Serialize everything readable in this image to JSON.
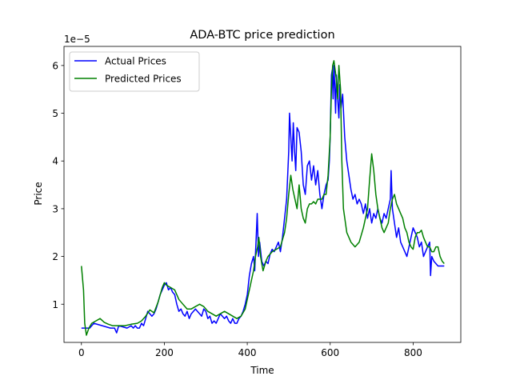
{
  "chart_data": {
    "type": "line",
    "title": "ADA-BTC price prediction",
    "xlabel": "Time",
    "ylabel": "Price",
    "y_scale_label": "1e−5",
    "xlim": [
      -42,
      915
    ],
    "ylim": [
      0.2,
      6.4
    ],
    "xticks": [
      0,
      200,
      400,
      600,
      800
    ],
    "yticks": [
      1,
      2,
      3,
      4,
      5,
      6
    ],
    "legend_position": "top-left",
    "series": [
      {
        "name": "Actual Prices",
        "color": "#0000ff",
        "points": [
          [
            0,
            0.5
          ],
          [
            20,
            0.5
          ],
          [
            30,
            0.6
          ],
          [
            50,
            0.55
          ],
          [
            70,
            0.5
          ],
          [
            80,
            0.5
          ],
          [
            85,
            0.4
          ],
          [
            90,
            0.55
          ],
          [
            110,
            0.5
          ],
          [
            120,
            0.55
          ],
          [
            125,
            0.5
          ],
          [
            130,
            0.55
          ],
          [
            135,
            0.5
          ],
          [
            140,
            0.5
          ],
          [
            145,
            0.6
          ],
          [
            150,
            0.55
          ],
          [
            155,
            0.7
          ],
          [
            160,
            0.85
          ],
          [
            165,
            0.8
          ],
          [
            170,
            0.75
          ],
          [
            175,
            0.8
          ],
          [
            180,
            0.9
          ],
          [
            185,
            1.05
          ],
          [
            190,
            1.2
          ],
          [
            195,
            1.3
          ],
          [
            200,
            1.4
          ],
          [
            205,
            1.45
          ],
          [
            210,
            1.3
          ],
          [
            215,
            1.35
          ],
          [
            220,
            1.25
          ],
          [
            225,
            1.2
          ],
          [
            230,
            1.0
          ],
          [
            235,
            0.85
          ],
          [
            240,
            0.9
          ],
          [
            245,
            0.8
          ],
          [
            250,
            0.75
          ],
          [
            255,
            0.85
          ],
          [
            260,
            0.7
          ],
          [
            265,
            0.8
          ],
          [
            270,
            0.85
          ],
          [
            275,
            0.9
          ],
          [
            280,
            0.85
          ],
          [
            285,
            0.8
          ],
          [
            290,
            0.75
          ],
          [
            295,
            0.9
          ],
          [
            300,
            0.85
          ],
          [
            305,
            0.7
          ],
          [
            310,
            0.75
          ],
          [
            315,
            0.6
          ],
          [
            320,
            0.65
          ],
          [
            325,
            0.6
          ],
          [
            330,
            0.7
          ],
          [
            335,
            0.8
          ],
          [
            340,
            0.75
          ],
          [
            345,
            0.7
          ],
          [
            350,
            0.75
          ],
          [
            355,
            0.65
          ],
          [
            360,
            0.6
          ],
          [
            365,
            0.7
          ],
          [
            370,
            0.6
          ],
          [
            375,
            0.6
          ],
          [
            380,
            0.7
          ],
          [
            385,
            0.75
          ],
          [
            390,
            0.85
          ],
          [
            395,
            1.0
          ],
          [
            400,
            1.2
          ],
          [
            405,
            1.6
          ],
          [
            410,
            1.85
          ],
          [
            415,
            2.0
          ],
          [
            418,
            1.7
          ],
          [
            421,
            2.3
          ],
          [
            424,
            2.9
          ],
          [
            427,
            2.0
          ],
          [
            430,
            2.3
          ],
          [
            435,
            1.9
          ],
          [
            440,
            1.8
          ],
          [
            445,
            1.9
          ],
          [
            450,
            1.85
          ],
          [
            455,
            2.05
          ],
          [
            460,
            2.15
          ],
          [
            465,
            2.1
          ],
          [
            470,
            2.2
          ],
          [
            475,
            2.3
          ],
          [
            480,
            2.1
          ],
          [
            485,
            2.4
          ],
          [
            490,
            2.8
          ],
          [
            495,
            3.2
          ],
          [
            500,
            4.2
          ],
          [
            502,
            5.0
          ],
          [
            505,
            4.5
          ],
          [
            508,
            4.0
          ],
          [
            511,
            4.8
          ],
          [
            514,
            4.2
          ],
          [
            517,
            3.8
          ],
          [
            520,
            4.7
          ],
          [
            525,
            4.6
          ],
          [
            530,
            4.2
          ],
          [
            535,
            3.5
          ],
          [
            540,
            3.3
          ],
          [
            545,
            3.9
          ],
          [
            550,
            4.0
          ],
          [
            555,
            3.6
          ],
          [
            560,
            3.9
          ],
          [
            565,
            3.5
          ],
          [
            570,
            3.8
          ],
          [
            575,
            3.3
          ],
          [
            580,
            3.0
          ],
          [
            585,
            3.3
          ],
          [
            590,
            3.5
          ],
          [
            595,
            3.6
          ],
          [
            598,
            4.0
          ],
          [
            600,
            4.5
          ],
          [
            603,
            5.8
          ],
          [
            605,
            5.9
          ],
          [
            607,
            5.3
          ],
          [
            609,
            6.0
          ],
          [
            611,
            5.6
          ],
          [
            613,
            5.0
          ],
          [
            615,
            5.8
          ],
          [
            618,
            5.3
          ],
          [
            621,
            4.9
          ],
          [
            623,
            5.6
          ],
          [
            626,
            5.1
          ],
          [
            630,
            5.4
          ],
          [
            635,
            4.5
          ],
          [
            640,
            4.0
          ],
          [
            645,
            3.7
          ],
          [
            650,
            3.4
          ],
          [
            655,
            3.2
          ],
          [
            660,
            3.3
          ],
          [
            665,
            3.1
          ],
          [
            670,
            3.2
          ],
          [
            675,
            3.1
          ],
          [
            680,
            2.9
          ],
          [
            685,
            3.1
          ],
          [
            690,
            2.8
          ],
          [
            695,
            3.0
          ],
          [
            700,
            2.7
          ],
          [
            705,
            2.9
          ],
          [
            710,
            2.8
          ],
          [
            715,
            3.0
          ],
          [
            720,
            2.8
          ],
          [
            725,
            2.7
          ],
          [
            730,
            2.9
          ],
          [
            735,
            2.8
          ],
          [
            740,
            3.0
          ],
          [
            745,
            3.2
          ],
          [
            747,
            3.8
          ],
          [
            750,
            3.0
          ],
          [
            755,
            2.7
          ],
          [
            760,
            2.4
          ],
          [
            765,
            2.6
          ],
          [
            770,
            2.3
          ],
          [
            775,
            2.2
          ],
          [
            780,
            2.1
          ],
          [
            785,
            2.0
          ],
          [
            790,
            2.2
          ],
          [
            795,
            2.4
          ],
          [
            800,
            2.6
          ],
          [
            805,
            2.5
          ],
          [
            810,
            2.4
          ],
          [
            815,
            2.2
          ],
          [
            820,
            2.3
          ],
          [
            825,
            2.0
          ],
          [
            830,
            2.1
          ],
          [
            835,
            2.2
          ],
          [
            840,
            2.3
          ],
          [
            842,
            1.6
          ],
          [
            845,
            2.0
          ],
          [
            850,
            1.9
          ],
          [
            860,
            1.8
          ],
          [
            875,
            1.8
          ]
        ]
      },
      {
        "name": "Predicted Prices",
        "color": "#008000",
        "points": [
          [
            0,
            1.8
          ],
          [
            5,
            1.3
          ],
          [
            8,
            0.6
          ],
          [
            12,
            0.35
          ],
          [
            18,
            0.5
          ],
          [
            25,
            0.6
          ],
          [
            35,
            0.65
          ],
          [
            45,
            0.7
          ],
          [
            55,
            0.62
          ],
          [
            65,
            0.58
          ],
          [
            75,
            0.55
          ],
          [
            90,
            0.55
          ],
          [
            105,
            0.55
          ],
          [
            120,
            0.58
          ],
          [
            135,
            0.6
          ],
          [
            145,
            0.65
          ],
          [
            155,
            0.75
          ],
          [
            165,
            0.88
          ],
          [
            175,
            0.82
          ],
          [
            185,
            1.05
          ],
          [
            195,
            1.35
          ],
          [
            200,
            1.45
          ],
          [
            205,
            1.4
          ],
          [
            215,
            1.35
          ],
          [
            225,
            1.3
          ],
          [
            235,
            1.1
          ],
          [
            245,
            1.0
          ],
          [
            255,
            0.9
          ],
          [
            265,
            0.9
          ],
          [
            275,
            0.95
          ],
          [
            285,
            1.0
          ],
          [
            295,
            0.95
          ],
          [
            305,
            0.85
          ],
          [
            315,
            0.8
          ],
          [
            325,
            0.75
          ],
          [
            335,
            0.8
          ],
          [
            345,
            0.85
          ],
          [
            355,
            0.8
          ],
          [
            365,
            0.75
          ],
          [
            375,
            0.7
          ],
          [
            385,
            0.75
          ],
          [
            395,
            0.9
          ],
          [
            400,
            1.1
          ],
          [
            405,
            1.3
          ],
          [
            410,
            1.5
          ],
          [
            415,
            1.7
          ],
          [
            420,
            2.0
          ],
          [
            425,
            2.2
          ],
          [
            428,
            2.4
          ],
          [
            432,
            2.0
          ],
          [
            438,
            1.7
          ],
          [
            445,
            1.9
          ],
          [
            450,
            2.0
          ],
          [
            460,
            2.1
          ],
          [
            470,
            2.15
          ],
          [
            480,
            2.2
          ],
          [
            490,
            2.5
          ],
          [
            495,
            2.8
          ],
          [
            500,
            3.3
          ],
          [
            505,
            3.7
          ],
          [
            510,
            3.4
          ],
          [
            515,
            3.2
          ],
          [
            520,
            3.0
          ],
          [
            525,
            3.5
          ],
          [
            530,
            3.0
          ],
          [
            535,
            2.8
          ],
          [
            540,
            2.7
          ],
          [
            545,
            3.0
          ],
          [
            550,
            3.1
          ],
          [
            555,
            3.1
          ],
          [
            560,
            3.15
          ],
          [
            565,
            3.1
          ],
          [
            570,
            3.2
          ],
          [
            575,
            3.2
          ],
          [
            580,
            3.2
          ],
          [
            585,
            3.3
          ],
          [
            590,
            3.3
          ],
          [
            595,
            3.7
          ],
          [
            600,
            4.5
          ],
          [
            603,
            5.5
          ],
          [
            606,
            6.0
          ],
          [
            609,
            6.1
          ],
          [
            612,
            5.9
          ],
          [
            615,
            5.7
          ],
          [
            618,
            5.3
          ],
          [
            621,
            6.0
          ],
          [
            625,
            5.5
          ],
          [
            628,
            4.0
          ],
          [
            632,
            3.0
          ],
          [
            640,
            2.5
          ],
          [
            650,
            2.3
          ],
          [
            660,
            2.2
          ],
          [
            670,
            2.3
          ],
          [
            680,
            2.6
          ],
          [
            690,
            3.0
          ],
          [
            695,
            3.6
          ],
          [
            700,
            4.15
          ],
          [
            705,
            3.8
          ],
          [
            710,
            3.3
          ],
          [
            715,
            3.0
          ],
          [
            720,
            2.8
          ],
          [
            725,
            2.6
          ],
          [
            730,
            2.5
          ],
          [
            740,
            2.7
          ],
          [
            745,
            3.0
          ],
          [
            750,
            3.2
          ],
          [
            755,
            3.3
          ],
          [
            760,
            3.1
          ],
          [
            765,
            3.0
          ],
          [
            770,
            2.9
          ],
          [
            775,
            2.8
          ],
          [
            780,
            2.6
          ],
          [
            785,
            2.5
          ],
          [
            790,
            2.3
          ],
          [
            795,
            2.2
          ],
          [
            800,
            2.15
          ],
          [
            805,
            2.4
          ],
          [
            810,
            2.5
          ],
          [
            815,
            2.5
          ],
          [
            820,
            2.55
          ],
          [
            825,
            2.4
          ],
          [
            830,
            2.3
          ],
          [
            835,
            2.2
          ],
          [
            840,
            2.2
          ],
          [
            845,
            2.1
          ],
          [
            850,
            2.1
          ],
          [
            855,
            2.2
          ],
          [
            860,
            2.2
          ],
          [
            865,
            2.0
          ],
          [
            870,
            1.9
          ],
          [
            875,
            1.85
          ]
        ]
      }
    ]
  }
}
